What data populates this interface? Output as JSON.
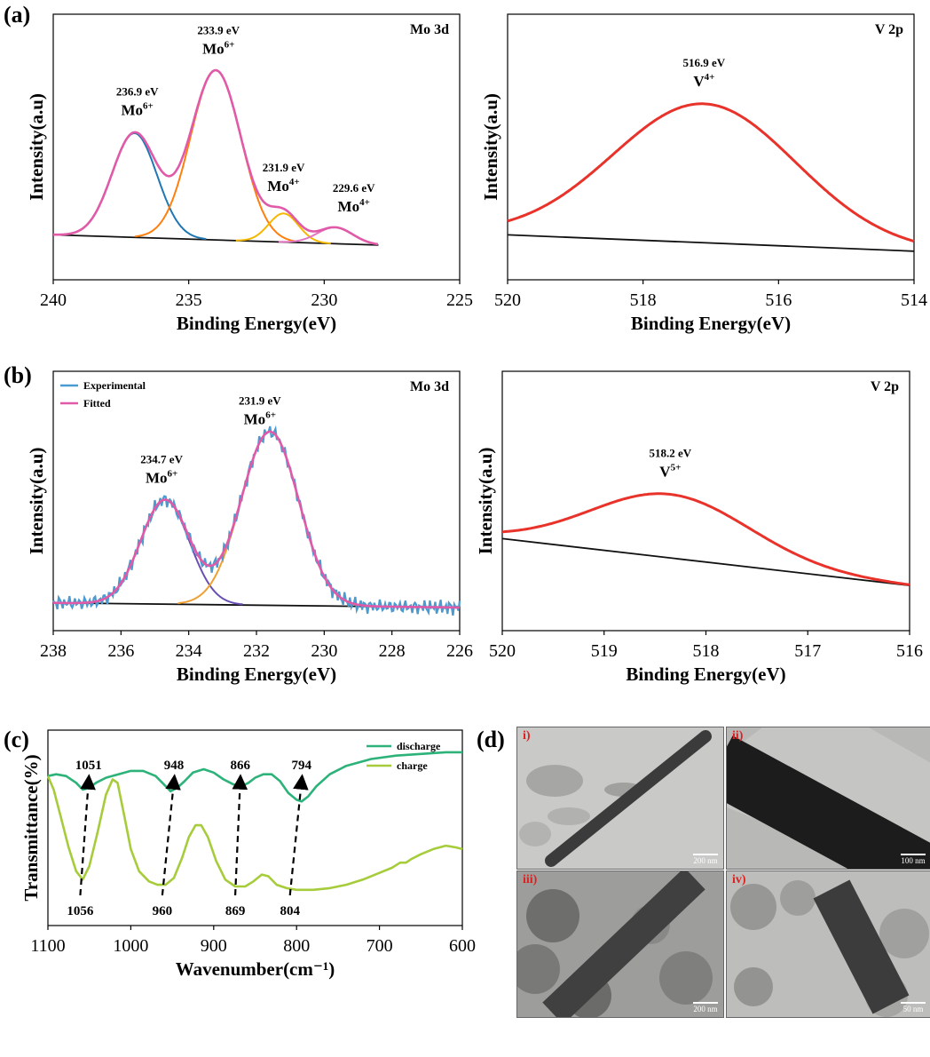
{
  "panel_labels": [
    "(a)",
    "(b)",
    "(c)",
    "(d)"
  ],
  "chart_data": [
    {
      "id": "a_mo",
      "type": "line",
      "panel_title": "Mo 3d",
      "xlabel": "Binding Energy(eV)",
      "ylabel": "Intensity(a.u)",
      "xlim": [
        240,
        225
      ],
      "xticks": [
        "240",
        "235",
        "230",
        "225"
      ],
      "baseline": [
        [
          240,
          0
        ],
        [
          228,
          -0.05
        ]
      ],
      "peaks": [
        {
          "center": 237.0,
          "amp": 0.51,
          "sigma": 0.83,
          "color": "#1f77b4"
        },
        {
          "center": 234.0,
          "amp": 0.83,
          "sigma": 0.93,
          "color": "#ff7f0e"
        },
        {
          "center": 231.5,
          "amp": 0.14,
          "sigma": 0.55,
          "color": "#f5b800"
        },
        {
          "center": 229.6,
          "amp": 0.08,
          "sigma": 0.65,
          "color": "#e377c2"
        }
      ],
      "annotations": [
        {
          "energy": "236.9 eV",
          "ion": "Mo",
          "charge": "6+",
          "x": 236.9
        },
        {
          "energy": "233.9 eV",
          "ion": "Mo",
          "charge": "6+",
          "x": 233.9
        },
        {
          "energy": "231.9 eV",
          "ion": "Mo",
          "charge": "4+",
          "x": 231.5
        },
        {
          "energy": "229.6 eV",
          "ion": "Mo",
          "charge": "4+",
          "x": 229.3
        }
      ]
    },
    {
      "id": "a_v",
      "type": "line",
      "panel_title": "V 2p",
      "xlabel": "Binding Energy(eV)",
      "ylabel": "Intensity(a.u)",
      "xlim": [
        520,
        514
      ],
      "xticks": [
        "520",
        "518",
        "516",
        "514"
      ],
      "baseline": [
        [
          520,
          0
        ],
        [
          514,
          -0.08
        ]
      ],
      "peaks": [
        {
          "center": 517.1,
          "amp": 0.68,
          "sigma": 1.35,
          "color": "#e8322a"
        }
      ],
      "annotations": [
        {
          "energy": "516.9 eV",
          "ion": "V",
          "charge": "4+",
          "x": 517.1
        }
      ]
    },
    {
      "id": "b_mo",
      "type": "line",
      "panel_title": "Mo 3d",
      "xlabel": "Binding Energy(eV)",
      "ylabel": "Intensity(a.u)",
      "xlim": [
        238,
        226
      ],
      "xticks": [
        "238",
        "236",
        "234",
        "232",
        "230",
        "228",
        "226"
      ],
      "baseline": [
        [
          238,
          0
        ],
        [
          226,
          -0.02
        ]
      ],
      "legend": [
        {
          "name": "Experimental",
          "color": "#4a9bd1"
        },
        {
          "name": "Fitted",
          "color": "#e05aa8"
        }
      ],
      "peaks": [
        {
          "center": 234.7,
          "amp": 0.45,
          "sigma": 0.72,
          "color": "#6a4fb3"
        },
        {
          "center": 231.6,
          "amp": 0.75,
          "sigma": 0.85,
          "color": "#f0a030"
        }
      ],
      "annotations": [
        {
          "energy": "234.7 eV",
          "ion": "Mo",
          "charge": "6+",
          "x": 234.8
        },
        {
          "energy": "231.9 eV",
          "ion": "Mo",
          "charge": "6+",
          "x": 231.9
        }
      ]
    },
    {
      "id": "b_v",
      "type": "line",
      "panel_title": "V 2p",
      "xlabel": "Binding Energy(eV)",
      "ylabel": "Intensity(a.u)",
      "xlim": [
        520,
        516
      ],
      "xticks": [
        "520",
        "519",
        "518",
        "517",
        "516"
      ],
      "baseline": [
        [
          520,
          0
        ],
        [
          516,
          -0.28
        ]
      ],
      "peaks": [
        {
          "center": 518.35,
          "amp": 0.38,
          "sigma": 0.78,
          "color": "#e8322a"
        }
      ],
      "annotations": [
        {
          "energy": "518.2 eV",
          "ion": "V",
          "charge": "5+",
          "x": 518.35
        }
      ]
    },
    {
      "id": "c_ftir",
      "type": "line",
      "xlabel": "Wavenumber(cm⁻¹)",
      "ylabel": "Transmittance(%)",
      "xlim": [
        1100,
        600
      ],
      "xticks": [
        "1100",
        "1000",
        "900",
        "800",
        "700",
        "600"
      ],
      "series": [
        {
          "name": "discharge",
          "color": "#2db37a",
          "points": [
            [
              1100,
              0.78
            ],
            [
              1090,
              0.79
            ],
            [
              1078,
              0.78
            ],
            [
              1066,
              0.74
            ],
            [
              1058,
              0.7
            ],
            [
              1050,
              0.71
            ],
            [
              1042,
              0.74
            ],
            [
              1030,
              0.77
            ],
            [
              1015,
              0.79
            ],
            [
              1000,
              0.81
            ],
            [
              985,
              0.81
            ],
            [
              970,
              0.78
            ],
            [
              960,
              0.73
            ],
            [
              952,
              0.69
            ],
            [
              944,
              0.71
            ],
            [
              935,
              0.75
            ],
            [
              925,
              0.8
            ],
            [
              912,
              0.82
            ],
            [
              900,
              0.8
            ],
            [
              888,
              0.76
            ],
            [
              876,
              0.73
            ],
            [
              866,
              0.72
            ],
            [
              858,
              0.74
            ],
            [
              850,
              0.77
            ],
            [
              840,
              0.79
            ],
            [
              830,
              0.79
            ],
            [
              820,
              0.75
            ],
            [
              810,
              0.68
            ],
            [
              800,
              0.64
            ],
            [
              794,
              0.63
            ],
            [
              786,
              0.66
            ],
            [
              776,
              0.72
            ],
            [
              760,
              0.79
            ],
            [
              740,
              0.84
            ],
            [
              710,
              0.88
            ],
            [
              680,
              0.9
            ],
            [
              650,
              0.91
            ],
            [
              620,
              0.92
            ],
            [
              600,
              0.92
            ]
          ]
        },
        {
          "name": "charge",
          "color": "#a6cc3b",
          "points": [
            [
              1100,
              0.78
            ],
            [
              1093,
              0.7
            ],
            [
              1085,
              0.55
            ],
            [
              1075,
              0.36
            ],
            [
              1066,
              0.22
            ],
            [
              1058,
              0.17
            ],
            [
              1050,
              0.25
            ],
            [
              1040,
              0.45
            ],
            [
              1030,
              0.67
            ],
            [
              1022,
              0.76
            ],
            [
              1016,
              0.74
            ],
            [
              1008,
              0.55
            ],
            [
              1000,
              0.35
            ],
            [
              990,
              0.22
            ],
            [
              978,
              0.16
            ],
            [
              968,
              0.14
            ],
            [
              958,
              0.14
            ],
            [
              948,
              0.18
            ],
            [
              938,
              0.3
            ],
            [
              930,
              0.42
            ],
            [
              922,
              0.49
            ],
            [
              915,
              0.49
            ],
            [
              907,
              0.42
            ],
            [
              897,
              0.28
            ],
            [
              886,
              0.17
            ],
            [
              874,
              0.13
            ],
            [
              862,
              0.13
            ],
            [
              852,
              0.16
            ],
            [
              842,
              0.2
            ],
            [
              834,
              0.19
            ],
            [
              824,
              0.14
            ],
            [
              812,
              0.12
            ],
            [
              800,
              0.11
            ],
            [
              780,
              0.11
            ],
            [
              760,
              0.12
            ],
            [
              740,
              0.14
            ],
            [
              720,
              0.17
            ],
            [
              700,
              0.21
            ],
            [
              685,
              0.24
            ],
            [
              675,
              0.27
            ],
            [
              668,
              0.27
            ],
            [
              662,
              0.29
            ],
            [
              650,
              0.32
            ],
            [
              635,
              0.35
            ],
            [
              620,
              0.37
            ],
            [
              608,
              0.36
            ],
            [
              600,
              0.35
            ]
          ]
        }
      ],
      "arrows": [
        {
          "top_label": "1051",
          "bottom_label": "1056",
          "x_top": 1051,
          "x_bottom": 1061
        },
        {
          "top_label": "948",
          "bottom_label": "960",
          "x_top": 948,
          "x_bottom": 962
        },
        {
          "top_label": "866",
          "bottom_label": "869",
          "x_top": 868,
          "x_bottom": 874
        },
        {
          "top_label": "794",
          "bottom_label": "804",
          "x_top": 794,
          "x_bottom": 808
        }
      ]
    }
  ],
  "tem_panels": [
    {
      "label": "i)",
      "scale": "200 nm"
    },
    {
      "label": "ii)",
      "scale": "100 nm"
    },
    {
      "label": "iii)",
      "scale": "200 nm"
    },
    {
      "label": "iv)",
      "scale": "50 nm"
    }
  ]
}
